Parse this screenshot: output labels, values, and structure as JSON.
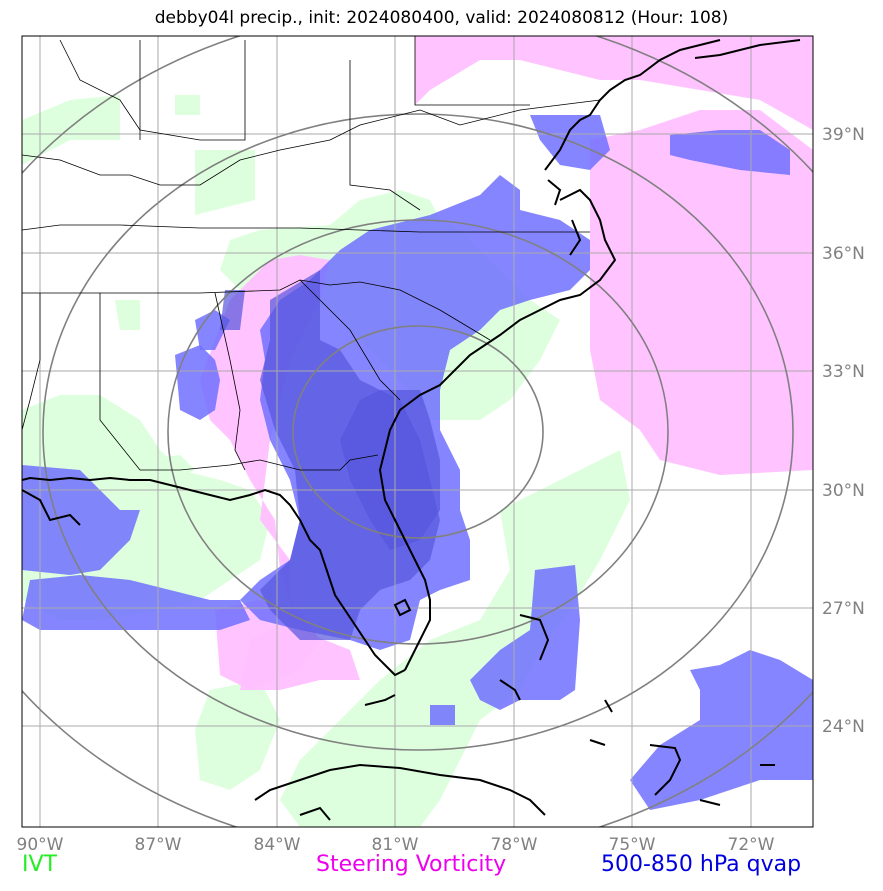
{
  "title": "debby04l precip., init: 2024080400, valid: 2024080812 (Hour: 108)",
  "lon_labels": [
    "90°W",
    "87°W",
    "84°W",
    "81°W",
    "78°W",
    "75°W",
    "72°W"
  ],
  "lat_labels": [
    "39°N",
    "36°N",
    "33°N",
    "30°N",
    "27°N",
    "24°N"
  ],
  "legend": {
    "ivt": {
      "label": "IVT",
      "color": "#22ee22"
    },
    "vorticity": {
      "label": "Steering Vorticity",
      "color": "#ee00ee"
    },
    "qvap": {
      "label": "500-850 hPa qvap",
      "color": "#0000dd"
    }
  },
  "colors": {
    "ivt_fill": "#ddffdd",
    "vorticity_fill": "#ffc0ff",
    "qvap_fill": "#7070ff",
    "overlap_fill": "#5555dd",
    "grid": "#aaaaaa",
    "ring": "#808080",
    "coast": "#000000"
  }
}
